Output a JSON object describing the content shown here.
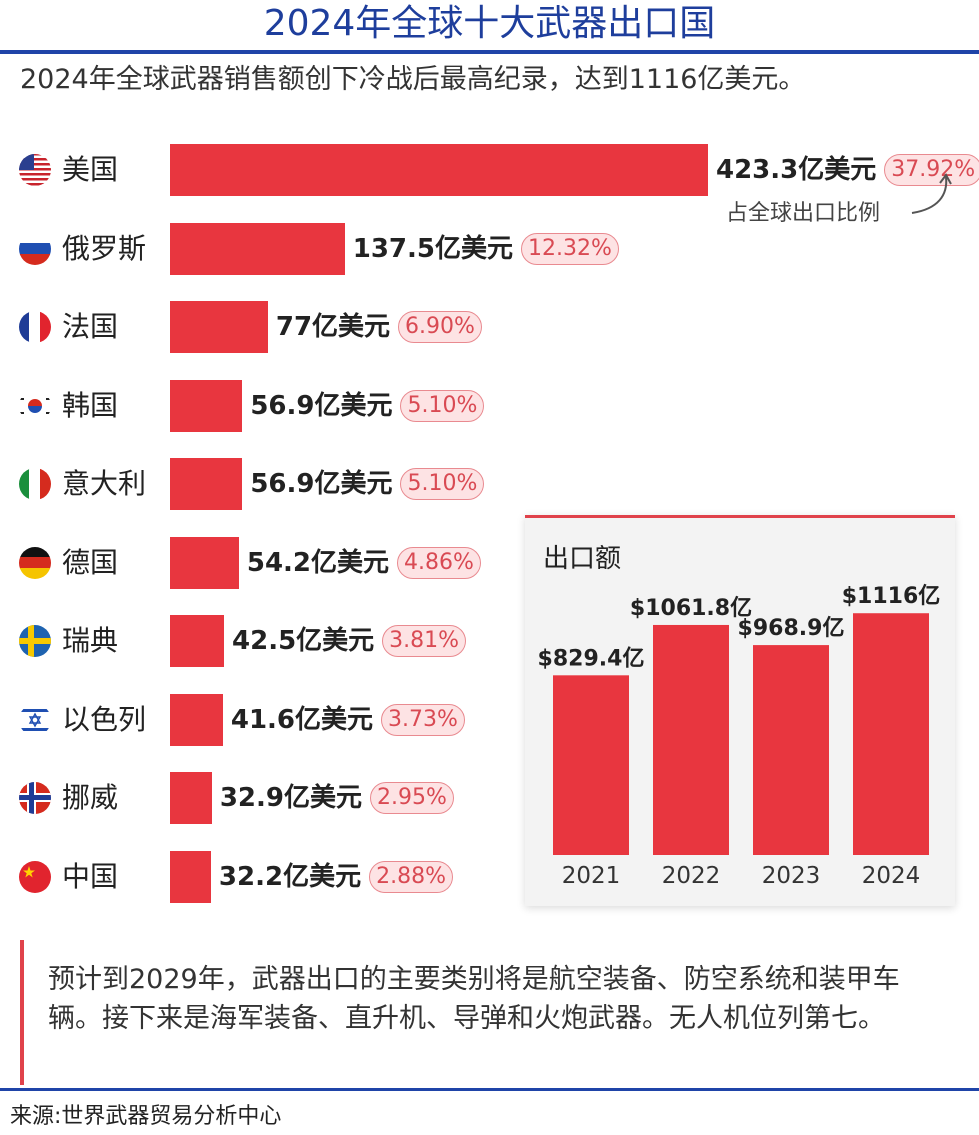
{
  "title": "2024年全球十大武器出口国",
  "subtitle": "2024年全球武器销售额创下冷战后最高纪录，达到1116亿美元。",
  "share_note": "占全球出口比例",
  "note": "预计到2029年，武器出口的主要类别将是航空装备、防空系统和装甲车辆。接下来是海军装备、直升机、导弹和火炮武器。无人机位列第七。",
  "source": "来源:世界武器贸易分析中心",
  "colors": {
    "bar": "#e8363f",
    "title": "#1e3e9c",
    "rule": "#1f44a8"
  },
  "chart_data": [
    {
      "type": "bar",
      "orientation": "horizontal",
      "title": "",
      "categories": [
        "美国",
        "俄罗斯",
        "法国",
        "韩国",
        "意大利",
        "德国",
        "瑞典",
        "以色列",
        "挪威",
        "中国"
      ],
      "flags": [
        "us-flag-icon",
        "russia-flag-icon",
        "france-flag-icon",
        "south-korea-flag-icon",
        "italy-flag-icon",
        "germany-flag-icon",
        "sweden-flag-icon",
        "israel-flag-icon",
        "norway-flag-icon",
        "china-flag-icon"
      ],
      "values": [
        423.3,
        137.5,
        77,
        56.9,
        56.9,
        54.2,
        42.5,
        41.6,
        32.9,
        32.2
      ],
      "value_labels": [
        "423.3亿美元",
        "137.5亿美元",
        "77亿美元",
        "56.9亿美元",
        "56.9亿美元",
        "54.2亿美元",
        "42.5亿美元",
        "41.6亿美元",
        "32.9亿美元",
        "32.2亿美元"
      ],
      "share_labels": [
        "37.92%",
        "12.32%",
        "6.90%",
        "5.10%",
        "5.10%",
        "4.86%",
        "3.81%",
        "3.73%",
        "2.95%",
        "2.88%"
      ],
      "unit": "亿美元"
    },
    {
      "type": "bar",
      "title": "出口额",
      "categories": [
        "2021",
        "2022",
        "2023",
        "2024"
      ],
      "values": [
        829.4,
        1061.8,
        968.9,
        1116
      ],
      "value_labels": [
        "$829.4亿",
        "$1061.8亿",
        "$968.9亿",
        "$1116亿"
      ],
      "ylim": [
        0,
        1160
      ]
    }
  ]
}
